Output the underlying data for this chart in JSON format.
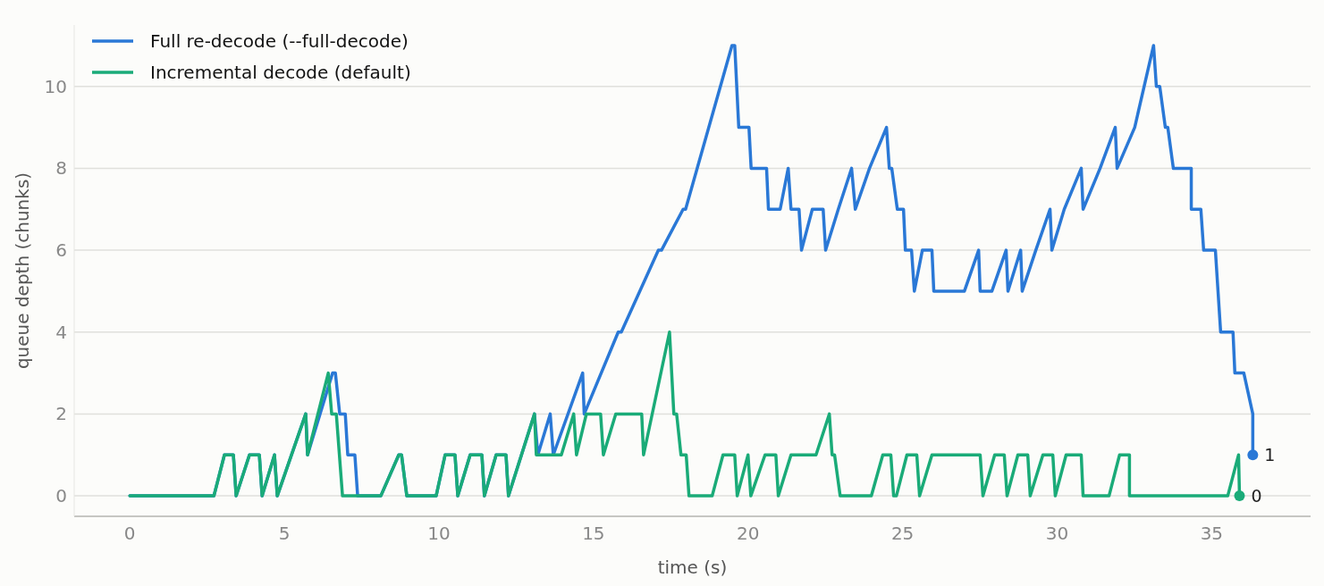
{
  "chart_data": {
    "type": "line",
    "xlabel": "time (s)",
    "ylabel": "queue depth (chunks)",
    "xlim": [
      -1.8,
      38.2
    ],
    "ylim": [
      -0.5,
      11.5
    ],
    "xticks": [
      0,
      5,
      10,
      15,
      20,
      25,
      30,
      35
    ],
    "yticks": [
      0,
      2,
      4,
      6,
      8,
      10
    ],
    "grid": "y",
    "legend": "top left",
    "line_style": "solid",
    "series": [
      {
        "name": "Full re-decode (--full-decode)",
        "color": "#2a78d6",
        "x": [
          0,
          2.72,
          3.06,
          3.35,
          3.44,
          3.87,
          4.19,
          4.28,
          4.68,
          4.77,
          5.69,
          5.75,
          6.56,
          6.65,
          6.79,
          6.97,
          7.05,
          7.28,
          7.37,
          8.12,
          8.7,
          8.79,
          8.96,
          9.91,
          10.2,
          10.52,
          10.61,
          11.01,
          11.39,
          11.47,
          11.85,
          12.17,
          12.25,
          13.09,
          13.2,
          13.6,
          13.7,
          14.65,
          14.7,
          15.8,
          15.9,
          17.1,
          17.2,
          17.9,
          17.98,
          19.48,
          19.57,
          19.7,
          20.03,
          20.1,
          20.6,
          20.66,
          21.04,
          21.3,
          21.39,
          21.65,
          21.73,
          22.08,
          22.43,
          22.51,
          22.92,
          23.35,
          23.47,
          23.93,
          24.48,
          24.57,
          24.65,
          24.83,
          25.03,
          25.09,
          25.29,
          25.38,
          25.64,
          25.95,
          26.01,
          27.0,
          27.46,
          27.51,
          27.89,
          28.35,
          28.41,
          28.82,
          28.87,
          29.31,
          29.77,
          29.83,
          30.23,
          30.78,
          30.84,
          31.39,
          31.88,
          31.94,
          32.51,
          33.12,
          33.21,
          33.32,
          33.5,
          33.58,
          33.76,
          34.34,
          34.34,
          34.65,
          34.74,
          35.12,
          35.29,
          35.69,
          35.75,
          36.04,
          36.33,
          36.33
        ],
        "values": [
          0,
          0,
          1,
          1,
          0,
          1,
          1,
          0,
          1,
          0,
          2,
          1,
          3,
          3,
          2,
          2,
          1,
          1,
          0,
          0,
          1,
          1,
          0,
          0,
          1,
          1,
          0,
          1,
          1,
          0,
          1,
          1,
          0,
          2,
          1,
          2,
          1,
          3,
          2,
          4,
          4,
          6,
          6,
          7,
          7,
          11,
          11,
          9,
          9,
          8,
          8,
          7,
          7,
          8,
          7,
          7,
          6,
          7,
          7,
          6,
          7,
          8,
          7,
          8,
          9,
          8,
          8,
          7,
          7,
          6,
          6,
          5,
          6,
          6,
          5,
          5,
          6,
          5,
          5,
          6,
          5,
          6,
          5,
          6,
          7,
          6,
          7,
          8,
          7,
          8,
          9,
          8,
          9,
          11,
          10,
          10,
          9,
          9,
          8,
          8,
          7,
          7,
          6,
          6,
          4,
          4,
          3,
          3,
          2,
          1
        ]
      },
      {
        "name": "Incremental decode (default)",
        "color": "#1aab78",
        "x": [
          0,
          2.72,
          3.06,
          3.35,
          3.44,
          3.87,
          4.19,
          4.28,
          4.68,
          4.77,
          5.69,
          5.75,
          6.42,
          6.53,
          6.68,
          6.88,
          8.12,
          8.7,
          8.79,
          8.96,
          9.91,
          10.2,
          10.52,
          10.61,
          11.01,
          11.39,
          11.47,
          11.85,
          12.17,
          12.25,
          13.09,
          13.15,
          13.96,
          14.36,
          14.45,
          14.77,
          15.23,
          15.32,
          15.72,
          16.56,
          16.62,
          17.46,
          17.6,
          17.69,
          17.83,
          18.0,
          18.09,
          18.84,
          19.19,
          19.57,
          19.65,
          20.0,
          20.09,
          20.55,
          20.9,
          20.98,
          21.39,
          22.2,
          22.63,
          22.72,
          22.8,
          22.98,
          23.99,
          24.36,
          24.62,
          24.71,
          24.8,
          25.14,
          25.46,
          25.55,
          25.95,
          27.51,
          27.6,
          27.98,
          28.29,
          28.38,
          28.73,
          29.05,
          29.13,
          29.54,
          29.86,
          29.94,
          30.29,
          30.78,
          30.84,
          31.68,
          32.02,
          32.34,
          32.34,
          35.52,
          35.87,
          35.9
        ],
        "values": [
          0,
          0,
          1,
          1,
          0,
          1,
          1,
          0,
          1,
          0,
          2,
          1,
          3,
          2,
          2,
          0,
          0,
          1,
          1,
          0,
          0,
          1,
          1,
          0,
          1,
          1,
          0,
          1,
          1,
          0,
          2,
          1,
          1,
          2,
          1,
          2,
          2,
          1,
          2,
          2,
          1,
          4,
          2,
          2,
          1,
          1,
          0,
          0,
          1,
          1,
          0,
          1,
          0,
          1,
          1,
          0,
          1,
          1,
          2,
          1,
          1,
          0,
          0,
          1,
          1,
          0,
          0,
          1,
          1,
          0,
          1,
          1,
          0,
          1,
          1,
          0,
          1,
          1,
          0,
          1,
          1,
          0,
          1,
          1,
          0,
          0,
          1,
          1,
          0,
          0,
          1,
          0
        ]
      },
      {
        "type": "scatter",
        "marker": "circle",
        "color": "#2a78d6",
        "x": [
          36.33
        ],
        "values": [
          1
        ]
      },
      {
        "type": "scatter",
        "marker": "circle",
        "color": "#1aab78",
        "x": [
          35.9
        ],
        "values": [
          0
        ]
      }
    ],
    "annotations": [
      {
        "text": "1",
        "x": 36.33,
        "y": 1
      },
      {
        "text": "0",
        "x": 35.9,
        "y": 0
      }
    ]
  }
}
